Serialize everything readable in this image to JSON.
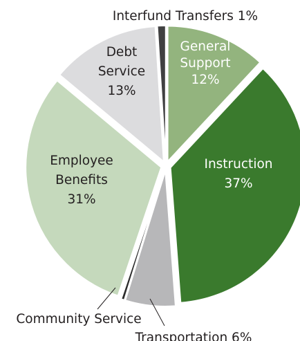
{
  "chart_data": {
    "type": "pie",
    "title": "",
    "slices": [
      {
        "id": "general-support",
        "lines": [
          "General",
          "Support",
          "12%"
        ],
        "value": 12,
        "color": "#93b47e",
        "text_color": "#ffffff"
      },
      {
        "id": "instruction",
        "lines": [
          "Instruction",
          "37%"
        ],
        "value": 37,
        "color": "#3a7a2d",
        "text_color": "#ffffff"
      },
      {
        "id": "transportation",
        "lines": [
          "Transportation 6%"
        ],
        "value": 6,
        "color": "#b7b7b9",
        "text_color": "#231f20"
      },
      {
        "id": "community-service",
        "lines": [
          "Community Service"
        ],
        "value": 0.4,
        "color": "#2b2b2b",
        "text_color": "#231f20"
      },
      {
        "id": "employee-benefits",
        "lines": [
          "Employee",
          "Benefits",
          "31%"
        ],
        "value": 31,
        "color": "#c5d9bc",
        "text_color": "#231f20"
      },
      {
        "id": "debt-service",
        "lines": [
          "Debt",
          "Service",
          "13%"
        ],
        "value": 13,
        "color": "#dcdcde",
        "text_color": "#231f20"
      },
      {
        "id": "interfund-transfers",
        "lines": [
          "Interfund Transfers 1%"
        ],
        "value": 1,
        "color": "#404041",
        "text_color": "#231f20"
      }
    ]
  }
}
